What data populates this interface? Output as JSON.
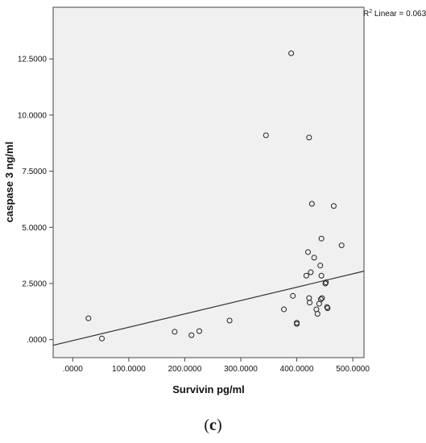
{
  "chart_data": {
    "type": "scatter",
    "xlabel": "Survivin pg/ml",
    "ylabel": "caspase 3 ng/ml",
    "xlim": [
      -35,
      520
    ],
    "ylim": [
      -0.8,
      14.8
    ],
    "x_ticks": [
      0,
      100,
      200,
      300,
      400,
      500
    ],
    "x_tick_labels": [
      ".0000",
      "100.0000",
      "200.0000",
      "300.0000",
      "400.0000",
      "500.0000"
    ],
    "y_ticks": [
      0,
      2.5,
      5,
      7.5,
      10,
      12.5
    ],
    "y_tick_labels": [
      ".0000",
      "2.5000",
      "5.0000",
      "7.5000",
      "10.0000",
      "12.5000"
    ],
    "annotation": {
      "r_label": "R",
      "sup": "2",
      "text": " Linear = 0.063"
    },
    "fit_line": {
      "x": [
        -35,
        520
      ],
      "y": [
        -0.25,
        3.05
      ]
    },
    "points": [
      {
        "x": 28,
        "y": 0.95
      },
      {
        "x": 52,
        "y": 0.05
      },
      {
        "x": 182,
        "y": 0.35
      },
      {
        "x": 212,
        "y": 0.2
      },
      {
        "x": 226,
        "y": 0.38
      },
      {
        "x": 280,
        "y": 0.85
      },
      {
        "x": 345,
        "y": 9.1
      },
      {
        "x": 377,
        "y": 1.35
      },
      {
        "x": 390,
        "y": 12.75
      },
      {
        "x": 393,
        "y": 1.95
      },
      {
        "x": 400,
        "y": 0.7
      },
      {
        "x": 400,
        "y": 0.75
      },
      {
        "x": 417,
        "y": 2.85
      },
      {
        "x": 420,
        "y": 3.9
      },
      {
        "x": 422,
        "y": 9.0
      },
      {
        "x": 422,
        "y": 1.85
      },
      {
        "x": 423,
        "y": 1.65
      },
      {
        "x": 425,
        "y": 3.0
      },
      {
        "x": 427,
        "y": 6.05
      },
      {
        "x": 431,
        "y": 3.65
      },
      {
        "x": 435,
        "y": 1.35
      },
      {
        "x": 437,
        "y": 1.15
      },
      {
        "x": 440,
        "y": 1.6
      },
      {
        "x": 442,
        "y": 3.3
      },
      {
        "x": 443,
        "y": 1.8
      },
      {
        "x": 444,
        "y": 2.85
      },
      {
        "x": 444,
        "y": 4.5
      },
      {
        "x": 445,
        "y": 1.85
      },
      {
        "x": 451,
        "y": 2.5
      },
      {
        "x": 452,
        "y": 2.55
      },
      {
        "x": 454,
        "y": 1.45
      },
      {
        "x": 455,
        "y": 1.4
      },
      {
        "x": 466,
        "y": 5.95
      },
      {
        "x": 480,
        "y": 4.2
      }
    ]
  },
  "panel_label": "c"
}
